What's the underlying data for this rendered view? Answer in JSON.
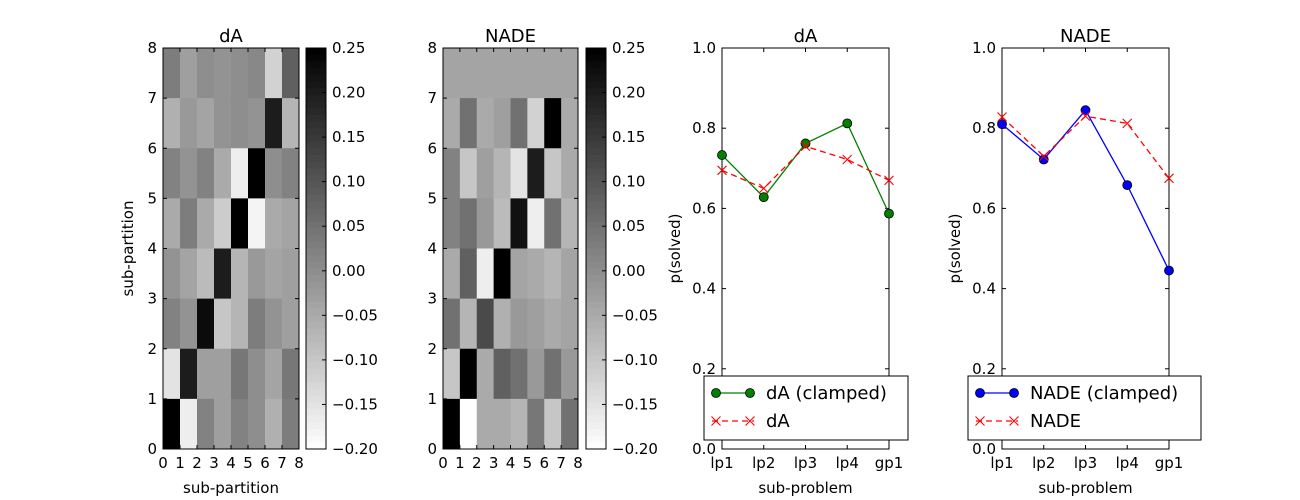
{
  "chart_data": [
    {
      "type": "heatmap",
      "title": "dA",
      "xlabel": "sub-partition",
      "ylabel": "sub-partition",
      "xlim": [
        0,
        8
      ],
      "ylim": [
        0,
        8
      ],
      "xticks": [
        "0",
        "1",
        "2",
        "3",
        "4",
        "5",
        "6",
        "7",
        "8"
      ],
      "yticks": [
        "0",
        "1",
        "2",
        "3",
        "4",
        "5",
        "6",
        "7",
        "8"
      ],
      "colormap": "gray_r",
      "vmin": -0.2,
      "vmax": 0.25,
      "colorbar_ticks": [
        "−0.20",
        "−0.15",
        "−0.10",
        "−0.05",
        "0.00",
        "0.05",
        "0.10",
        "0.15",
        "0.20",
        "0.25"
      ],
      "colorbar_values": [
        -0.2,
        -0.15,
        -0.1,
        -0.05,
        0.0,
        0.05,
        0.1,
        0.15,
        0.2,
        0.25
      ],
      "matrix_rows_top_to_bottom": [
        [
          0.03,
          -0.03,
          0.0,
          -0.01,
          0.0,
          0.01,
          -0.12,
          0.08
        ],
        [
          -0.06,
          -0.02,
          -0.04,
          -0.01,
          0.0,
          -0.01,
          0.2,
          -0.07
        ],
        [
          0.02,
          -0.01,
          0.02,
          -0.05,
          -0.17,
          0.25,
          0.0,
          0.02
        ],
        [
          -0.05,
          0.03,
          -0.05,
          -0.11,
          0.25,
          -0.18,
          -0.05,
          -0.04
        ],
        [
          -0.01,
          -0.04,
          -0.08,
          0.2,
          -0.07,
          -0.02,
          -0.04,
          -0.03
        ],
        [
          0.02,
          -0.01,
          0.23,
          -0.1,
          -0.07,
          0.03,
          -0.01,
          -0.03
        ],
        [
          -0.15,
          0.2,
          -0.03,
          -0.03,
          0.04,
          0.0,
          -0.04,
          0.04
        ],
        [
          0.25,
          -0.17,
          0.02,
          -0.03,
          0.02,
          0.0,
          -0.06,
          0.03
        ]
      ]
    },
    {
      "type": "heatmap",
      "title": "NADE",
      "xlabel": "",
      "ylabel": "",
      "xlim": [
        0,
        8
      ],
      "ylim": [
        0,
        8
      ],
      "xticks": [
        "0",
        "1",
        "2",
        "3",
        "4",
        "5",
        "6",
        "7",
        "8"
      ],
      "yticks": [
        "0",
        "1",
        "2",
        "3",
        "4",
        "5",
        "6",
        "7",
        "8"
      ],
      "colormap": "gray_r",
      "vmin": -0.2,
      "vmax": 0.25,
      "colorbar_ticks": [
        "−0.20",
        "−0.15",
        "−0.10",
        "−0.05",
        "0.00",
        "0.05",
        "0.10",
        "0.15",
        "0.20",
        "0.25"
      ],
      "colorbar_values": [
        -0.2,
        -0.15,
        -0.1,
        -0.05,
        0.0,
        0.05,
        0.1,
        0.15,
        0.2,
        0.25
      ],
      "matrix_rows_top_to_bottom": [
        [
          -0.04,
          -0.04,
          -0.04,
          -0.04,
          -0.04,
          -0.04,
          -0.04,
          -0.04
        ],
        [
          -0.05,
          0.05,
          -0.05,
          -0.03,
          0.05,
          -0.12,
          0.25,
          -0.05
        ],
        [
          0.02,
          -0.1,
          -0.03,
          -0.07,
          -0.15,
          0.2,
          -0.1,
          -0.05
        ],
        [
          0.02,
          0.05,
          -0.02,
          -0.08,
          0.22,
          -0.17,
          0.05,
          -0.07
        ],
        [
          -0.05,
          0.08,
          -0.17,
          0.25,
          -0.04,
          -0.05,
          -0.07,
          -0.04
        ],
        [
          0.05,
          -0.07,
          0.12,
          -0.06,
          -0.02,
          -0.03,
          -0.05,
          -0.04
        ],
        [
          -0.1,
          0.25,
          -0.05,
          0.08,
          0.05,
          -0.02,
          0.05,
          -0.02
        ],
        [
          0.25,
          -0.2,
          -0.05,
          -0.05,
          -0.07,
          0.04,
          -0.1,
          0.05
        ]
      ]
    },
    {
      "type": "line",
      "title": "dA",
      "xlabel": "sub-problem",
      "ylabel": "p(solved)",
      "categories": [
        "lp1",
        "lp2",
        "lp3",
        "lp4",
        "gp1"
      ],
      "ylim": [
        0.0,
        1.0
      ],
      "yticks": [
        "0.0",
        "0.2",
        "0.4",
        "0.6",
        "0.8",
        "1.0"
      ],
      "yticks_values": [
        0.0,
        0.2,
        0.4,
        0.6,
        0.8,
        1.0
      ],
      "legend_position": "lower-right",
      "series": [
        {
          "name": "dA (clamped)",
          "values": [
            0.733,
            0.628,
            0.762,
            0.812,
            0.587
          ],
          "color": "#008000",
          "style": "solid",
          "marker": "circle"
        },
        {
          "name": "dA",
          "values": [
            0.695,
            0.65,
            0.755,
            0.722,
            0.67
          ],
          "color": "#ff0000",
          "style": "dashed",
          "marker": "x"
        }
      ]
    },
    {
      "type": "line",
      "title": "NADE",
      "xlabel": "sub-problem",
      "ylabel": "p(solved)",
      "categories": [
        "lp1",
        "lp2",
        "lp3",
        "lp4",
        "gp1"
      ],
      "ylim": [
        0.0,
        1.0
      ],
      "yticks": [
        "0.0",
        "0.2",
        "0.4",
        "0.6",
        "0.8",
        "1.0"
      ],
      "yticks_values": [
        0.0,
        0.2,
        0.4,
        0.6,
        0.8,
        1.0
      ],
      "legend_position": "lower-right",
      "series": [
        {
          "name": "NADE (clamped)",
          "values": [
            0.81,
            0.722,
            0.845,
            0.658,
            0.445
          ],
          "color": "#0000ff",
          "style": "solid",
          "marker": "circle"
        },
        {
          "name": "NADE",
          "values": [
            0.828,
            0.73,
            0.83,
            0.812,
            0.675
          ],
          "color": "#ff0000",
          "style": "dashed",
          "marker": "x"
        }
      ]
    }
  ]
}
